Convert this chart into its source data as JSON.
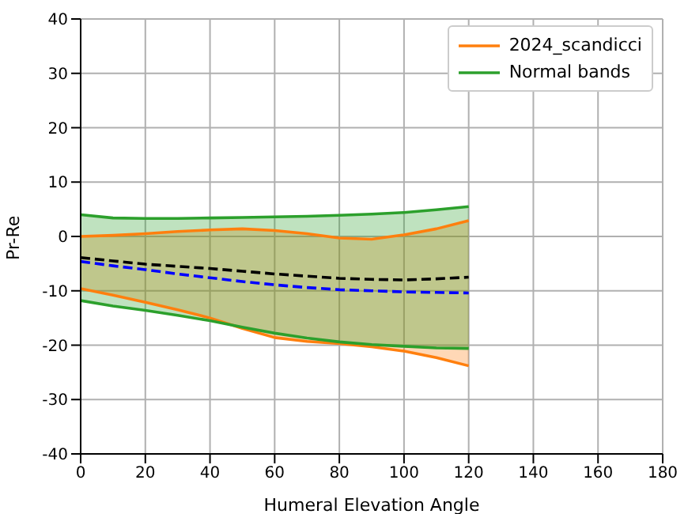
{
  "chart_data": {
    "type": "line",
    "xlabel": "Humeral Elevation Angle",
    "ylabel": "Pr-Re",
    "x": [
      0,
      10,
      20,
      30,
      40,
      50,
      60,
      70,
      80,
      90,
      100,
      110,
      120
    ],
    "xlim": [
      0,
      180
    ],
    "xticks": [
      0,
      20,
      40,
      60,
      80,
      100,
      120,
      140,
      160,
      180
    ],
    "ylim": [
      -40,
      40
    ],
    "yticks": [
      -40,
      -30,
      -20,
      -10,
      0,
      10,
      20,
      30,
      40
    ],
    "grid": true,
    "legend": "top right",
    "series": [
      {
        "name": "2024_scandicci",
        "type": "line",
        "color": "#ff7f0e",
        "values": [
          0,
          0.2,
          0.5,
          0.9,
          1.2,
          1.4,
          1.1,
          0.5,
          -0.3,
          -0.5,
          0.3,
          1.4,
          2.9
        ],
        "lower": [
          -9.6,
          -10.8,
          -12.1,
          -13.5,
          -15,
          -16.9,
          -18.6,
          -19.3,
          -19.7,
          -20.3,
          -21.1,
          -22.3,
          -23.8
        ],
        "upper": [
          0,
          0.2,
          0.5,
          0.9,
          1.2,
          1.4,
          1.1,
          0.5,
          -0.3,
          -0.5,
          0.3,
          1.4,
          2.9
        ]
      },
      {
        "name": "Normal bands",
        "type": "line",
        "color": "#2ca02c",
        "values": [
          4,
          3.4,
          3.3,
          3.3,
          3.4,
          3.5,
          3.6,
          3.7,
          3.9,
          4.1,
          4.4,
          4.9,
          5.5
        ],
        "lower": [
          -11.8,
          -12.8,
          -13.6,
          -14.5,
          -15.5,
          -16.7,
          -17.8,
          -18.7,
          -19.4,
          -19.9,
          -20.2,
          -20.5,
          -20.6
        ],
        "upper": [
          4,
          3.4,
          3.3,
          3.3,
          3.4,
          3.5,
          3.6,
          3.7,
          3.9,
          4.1,
          4.4,
          4.9,
          5.5
        ]
      },
      {
        "type": "line",
        "color": "#ff7f0e",
        "values": [
          -9.6,
          -10.8,
          -12.1,
          -13.5,
          -15,
          -16.9,
          -18.6,
          -19.3,
          -19.7,
          -20.3,
          -21.1,
          -22.3,
          -23.8
        ]
      },
      {
        "type": "line",
        "color": "#2ca02c",
        "values": [
          -11.8,
          -12.8,
          -13.6,
          -14.5,
          -15.5,
          -16.7,
          -17.8,
          -18.7,
          -19.4,
          -19.9,
          -20.2,
          -20.5,
          -20.6
        ]
      },
      {
        "color": "#000000",
        "line_style": "dashed",
        "values": [
          -3.9,
          -4.5,
          -5.1,
          -5.5,
          -5.9,
          -6.4,
          -6.9,
          -7.3,
          -7.7,
          -7.9,
          -8.0,
          -7.8,
          -7.5
        ]
      },
      {
        "color": "#0000ff",
        "line_style": "dashed",
        "values": [
          -4.6,
          -5.4,
          -6.1,
          -6.9,
          -7.6,
          -8.3,
          -8.9,
          -9.4,
          -9.8,
          -10.0,
          -10.2,
          -10.3,
          -10.4
        ]
      }
    ]
  }
}
